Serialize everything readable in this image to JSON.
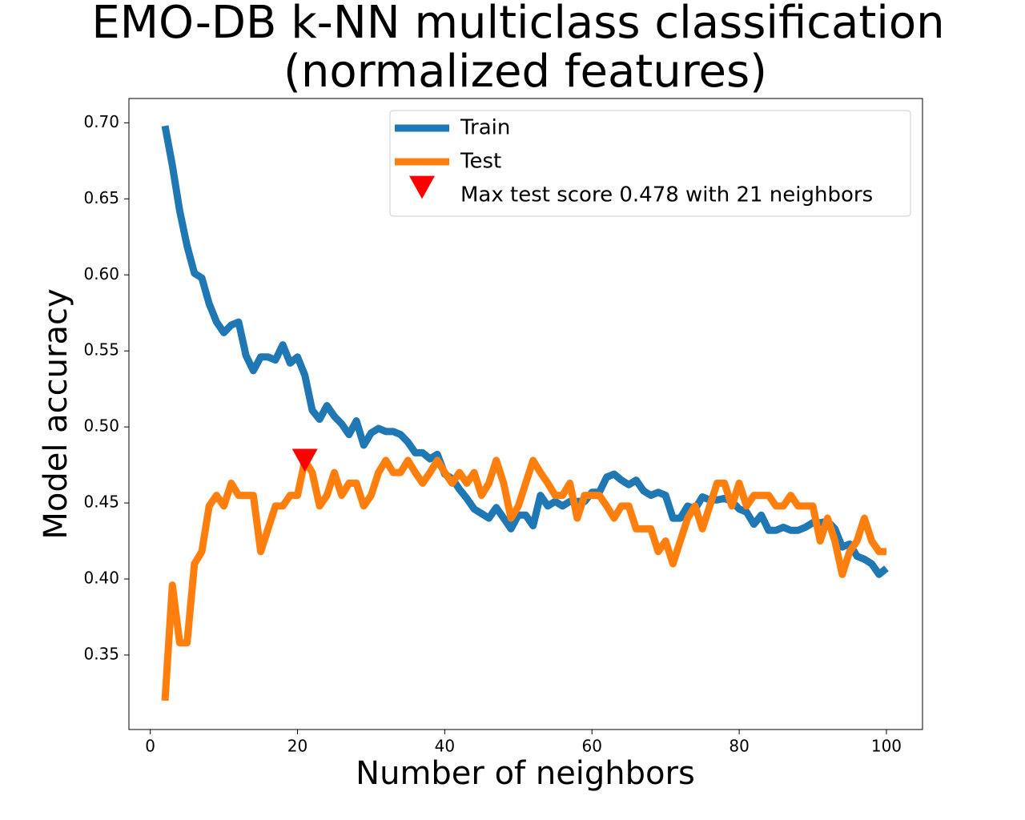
{
  "chart_data": {
    "type": "line",
    "title": [
      "EMO-DB k-NN multiclass classification",
      "(normalized features)"
    ],
    "xlabel": "Number of neighbors",
    "ylabel": "Model accuracy",
    "x": [
      2,
      3,
      4,
      5,
      6,
      7,
      8,
      9,
      10,
      11,
      12,
      13,
      14,
      15,
      16,
      17,
      18,
      19,
      20,
      21,
      22,
      23,
      24,
      25,
      26,
      27,
      28,
      29,
      30,
      31,
      32,
      33,
      34,
      35,
      36,
      37,
      38,
      39,
      40,
      41,
      42,
      43,
      44,
      45,
      46,
      47,
      48,
      49,
      50,
      51,
      52,
      53,
      54,
      55,
      56,
      57,
      58,
      59,
      60,
      61,
      62,
      63,
      64,
      65,
      66,
      67,
      68,
      69,
      70,
      71,
      72,
      73,
      74,
      75,
      76,
      77,
      78,
      79,
      80,
      81,
      82,
      83,
      84,
      85,
      86,
      87,
      88,
      89,
      90,
      91,
      92,
      93,
      94,
      95,
      96,
      97,
      98,
      99,
      100
    ],
    "series": [
      {
        "name": "Train",
        "color": "#1f77b4",
        "values": [
          0.698,
          0.672,
          0.642,
          0.619,
          0.601,
          0.598,
          0.581,
          0.569,
          0.562,
          0.567,
          0.569,
          0.547,
          0.537,
          0.546,
          0.546,
          0.544,
          0.554,
          0.542,
          0.546,
          0.534,
          0.511,
          0.505,
          0.514,
          0.507,
          0.502,
          0.495,
          0.504,
          0.488,
          0.496,
          0.499,
          0.497,
          0.497,
          0.495,
          0.49,
          0.483,
          0.483,
          0.479,
          0.482,
          0.469,
          0.466,
          0.459,
          0.453,
          0.446,
          0.443,
          0.44,
          0.447,
          0.44,
          0.433,
          0.442,
          0.442,
          0.435,
          0.455,
          0.448,
          0.451,
          0.448,
          0.451,
          0.451,
          0.451,
          0.457,
          0.457,
          0.467,
          0.469,
          0.465,
          0.462,
          0.465,
          0.458,
          0.455,
          0.457,
          0.455,
          0.44,
          0.44,
          0.448,
          0.446,
          0.454,
          0.452,
          0.452,
          0.453,
          0.451,
          0.446,
          0.444,
          0.436,
          0.442,
          0.432,
          0.432,
          0.434,
          0.432,
          0.432,
          0.434,
          0.437,
          0.437,
          0.438,
          0.433,
          0.421,
          0.423,
          0.415,
          0.413,
          0.41,
          0.403,
          0.407
        ]
      },
      {
        "name": "Test",
        "color": "#ff7f0e",
        "values": [
          0.32,
          0.396,
          0.358,
          0.358,
          0.41,
          0.418,
          0.448,
          0.455,
          0.448,
          0.463,
          0.455,
          0.455,
          0.455,
          0.418,
          0.433,
          0.448,
          0.448,
          0.455,
          0.455,
          0.478,
          0.47,
          0.448,
          0.455,
          0.47,
          0.455,
          0.463,
          0.463,
          0.448,
          0.455,
          0.47,
          0.478,
          0.47,
          0.47,
          0.478,
          0.47,
          0.463,
          0.47,
          0.478,
          0.47,
          0.463,
          0.47,
          0.463,
          0.47,
          0.455,
          0.463,
          0.478,
          0.463,
          0.44,
          0.448,
          0.463,
          0.478,
          0.47,
          0.463,
          0.455,
          0.455,
          0.463,
          0.44,
          0.455,
          0.455,
          0.455,
          0.448,
          0.44,
          0.448,
          0.448,
          0.433,
          0.433,
          0.433,
          0.418,
          0.425,
          0.41,
          0.425,
          0.44,
          0.448,
          0.433,
          0.448,
          0.463,
          0.463,
          0.448,
          0.463,
          0.448,
          0.455,
          0.455,
          0.455,
          0.448,
          0.448,
          0.455,
          0.448,
          0.448,
          0.448,
          0.425,
          0.44,
          0.425,
          0.403,
          0.418,
          0.425,
          0.44,
          0.425,
          0.418,
          0.418
        ]
      },
      {
        "name": "Max test score 0.478 with 21 neighbors",
        "color": "#ff0000",
        "marker": "triangle-down",
        "x": [
          21
        ],
        "values": [
          0.478
        ]
      }
    ],
    "xlim": [
      -2.9,
      104.9
    ],
    "ylim": [
      0.301,
      0.716
    ],
    "xticks": [
      0,
      20,
      40,
      60,
      80,
      100
    ],
    "yticks": [
      0.35,
      {
        "value": 0.4,
        "label": "0.40"
      },
      0.45,
      {
        "value": 0.5,
        "label": "0.50"
      },
      0.55,
      {
        "value": 0.6,
        "label": "0.60"
      },
      0.65,
      {
        "value": 0.7,
        "label": "0.70"
      }
    ],
    "legend": "upper right",
    "grid": false
  }
}
